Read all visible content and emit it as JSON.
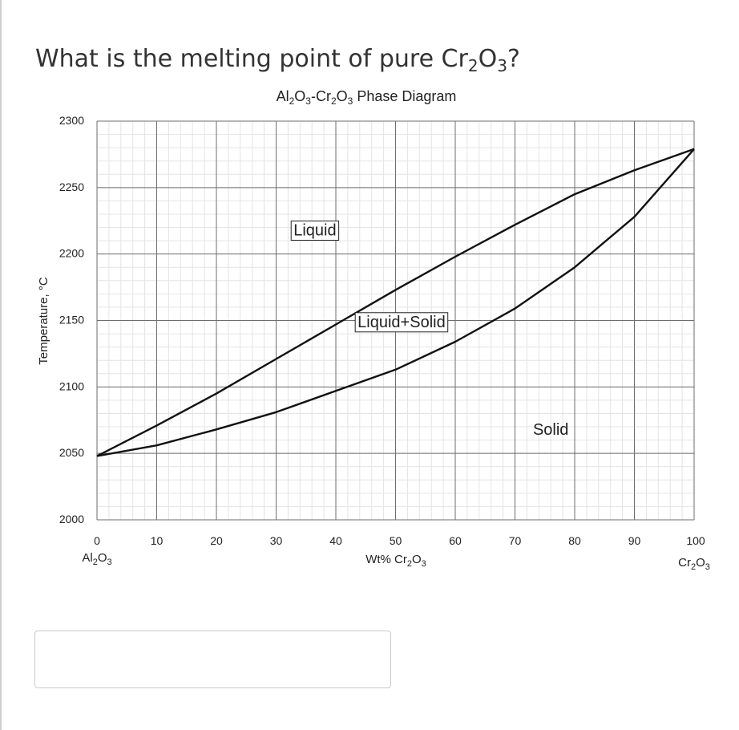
{
  "question": {
    "parts": [
      {
        "t": "What is the melting point of pure Cr",
        "sub": false
      },
      {
        "t": "2",
        "sub": true
      },
      {
        "t": "O",
        "sub": false
      },
      {
        "t": "3",
        "sub": true
      },
      {
        "t": "?",
        "sub": false
      }
    ]
  },
  "answer": {
    "value": "",
    "placeholder": ""
  },
  "chart_data": {
    "type": "line",
    "title": [
      {
        "t": "Al",
        "sub": false
      },
      {
        "t": "2",
        "sub": true
      },
      {
        "t": "O",
        "sub": false
      },
      {
        "t": "3",
        "sub": true
      },
      {
        "t": "-Cr",
        "sub": false
      },
      {
        "t": "2",
        "sub": true
      },
      {
        "t": "O",
        "sub": false
      },
      {
        "t": "3",
        "sub": true
      },
      {
        "t": " Phase Diagram",
        "sub": false
      }
    ],
    "xlabel": [
      {
        "t": "Wt% Cr",
        "sub": false
      },
      {
        "t": "2",
        "sub": true
      },
      {
        "t": "O",
        "sub": false
      },
      {
        "t": "3",
        "sub": true
      }
    ],
    "ylabel": "Temperature, °C",
    "x_end_labels": {
      "left": [
        {
          "t": "Al",
          "sub": false
        },
        {
          "t": "2",
          "sub": true
        },
        {
          "t": "O",
          "sub": false
        },
        {
          "t": "3",
          "sub": true
        }
      ],
      "right": [
        {
          "t": "Cr",
          "sub": false
        },
        {
          "t": "2",
          "sub": true
        },
        {
          "t": "O",
          "sub": false
        },
        {
          "t": "3",
          "sub": true
        }
      ]
    },
    "xlim": [
      0,
      100
    ],
    "ylim": [
      2000,
      2300
    ],
    "x_ticks": [
      0,
      10,
      20,
      30,
      40,
      50,
      60,
      70,
      80,
      90,
      100
    ],
    "y_ticks": [
      2000,
      2050,
      2100,
      2150,
      2200,
      2250,
      2300
    ],
    "grid": true,
    "legend": "none",
    "series": [
      {
        "x": [
          0,
          10,
          20,
          30,
          40,
          50,
          60,
          70,
          80,
          90,
          100
        ],
        "values": [
          2048,
          2071,
          2095,
          2121,
          2147,
          2173,
          2198,
          2222,
          2245,
          2263,
          2279
        ]
      },
      {
        "x": [
          0,
          10,
          20,
          30,
          40,
          50,
          60,
          70,
          80,
          90,
          100
        ],
        "values": [
          2048,
          2056,
          2068,
          2081,
          2097,
          2113,
          2134,
          2159,
          2190,
          2228,
          2279
        ]
      }
    ],
    "annotations": [
      {
        "text": "Liquid",
        "x": 36.5,
        "y": 2214,
        "boxed": true
      },
      {
        "text": "Liquid+Solid",
        "x": 51,
        "y": 2145,
        "boxed": true
      },
      {
        "text": "Solid",
        "x": 76,
        "y": 2064,
        "boxed": false
      }
    ],
    "colors": {
      "line": "#111111",
      "grid_major": "#6e6e6e",
      "grid_minor": "#e4e4e4"
    }
  }
}
